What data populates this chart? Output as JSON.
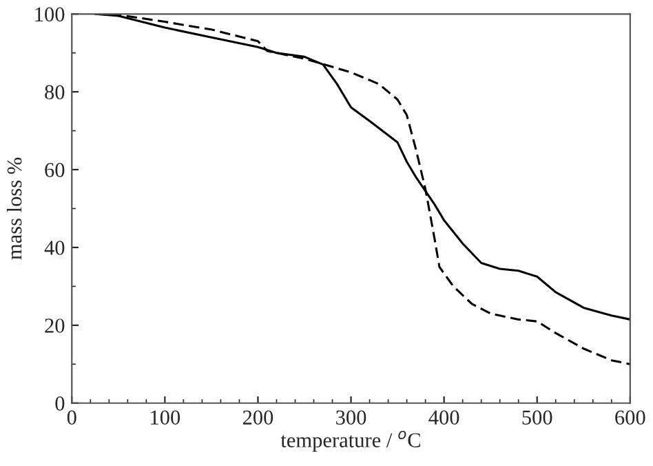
{
  "chart_data": {
    "type": "line",
    "xlabel": "temperature / $^{o}$C",
    "ylabel": "mass loss %",
    "xlim": [
      0,
      600
    ],
    "ylim": [
      0,
      100
    ],
    "xticks": [
      0,
      100,
      200,
      300,
      400,
      500,
      600
    ],
    "yticks": [
      0,
      20,
      40,
      60,
      80,
      100
    ],
    "grid": false,
    "legend": false,
    "marker": "none",
    "series": [
      {
        "color": "#000000",
        "line_style": "solid",
        "x": [
          25,
          50,
          100,
          150,
          200,
          220,
          250,
          270,
          285,
          300,
          320,
          350,
          360,
          370,
          390,
          400,
          420,
          440,
          460,
          480,
          500,
          520,
          550,
          580,
          600
        ],
        "values": [
          100,
          99.5,
          96.5,
          94,
          91.5,
          90,
          89,
          87,
          82,
          76,
          72.5,
          67,
          62,
          58,
          51,
          47,
          41,
          36,
          34.5,
          34,
          32.5,
          28.5,
          24.5,
          22.5,
          21.5
        ]
      },
      {
        "color": "#000000",
        "line_style": "dashed",
        "x": [
          25,
          50,
          100,
          150,
          200,
          210,
          250,
          300,
          330,
          350,
          360,
          370,
          380,
          390,
          395,
          410,
          430,
          450,
          480,
          500,
          520,
          550,
          580,
          600
        ],
        "values": [
          100,
          99.8,
          98,
          96,
          93,
          90.5,
          88.5,
          85,
          82,
          78,
          74,
          65,
          55,
          42,
          35,
          30,
          25.5,
          23,
          21.5,
          21,
          18,
          14,
          11,
          10
        ]
      }
    ]
  }
}
